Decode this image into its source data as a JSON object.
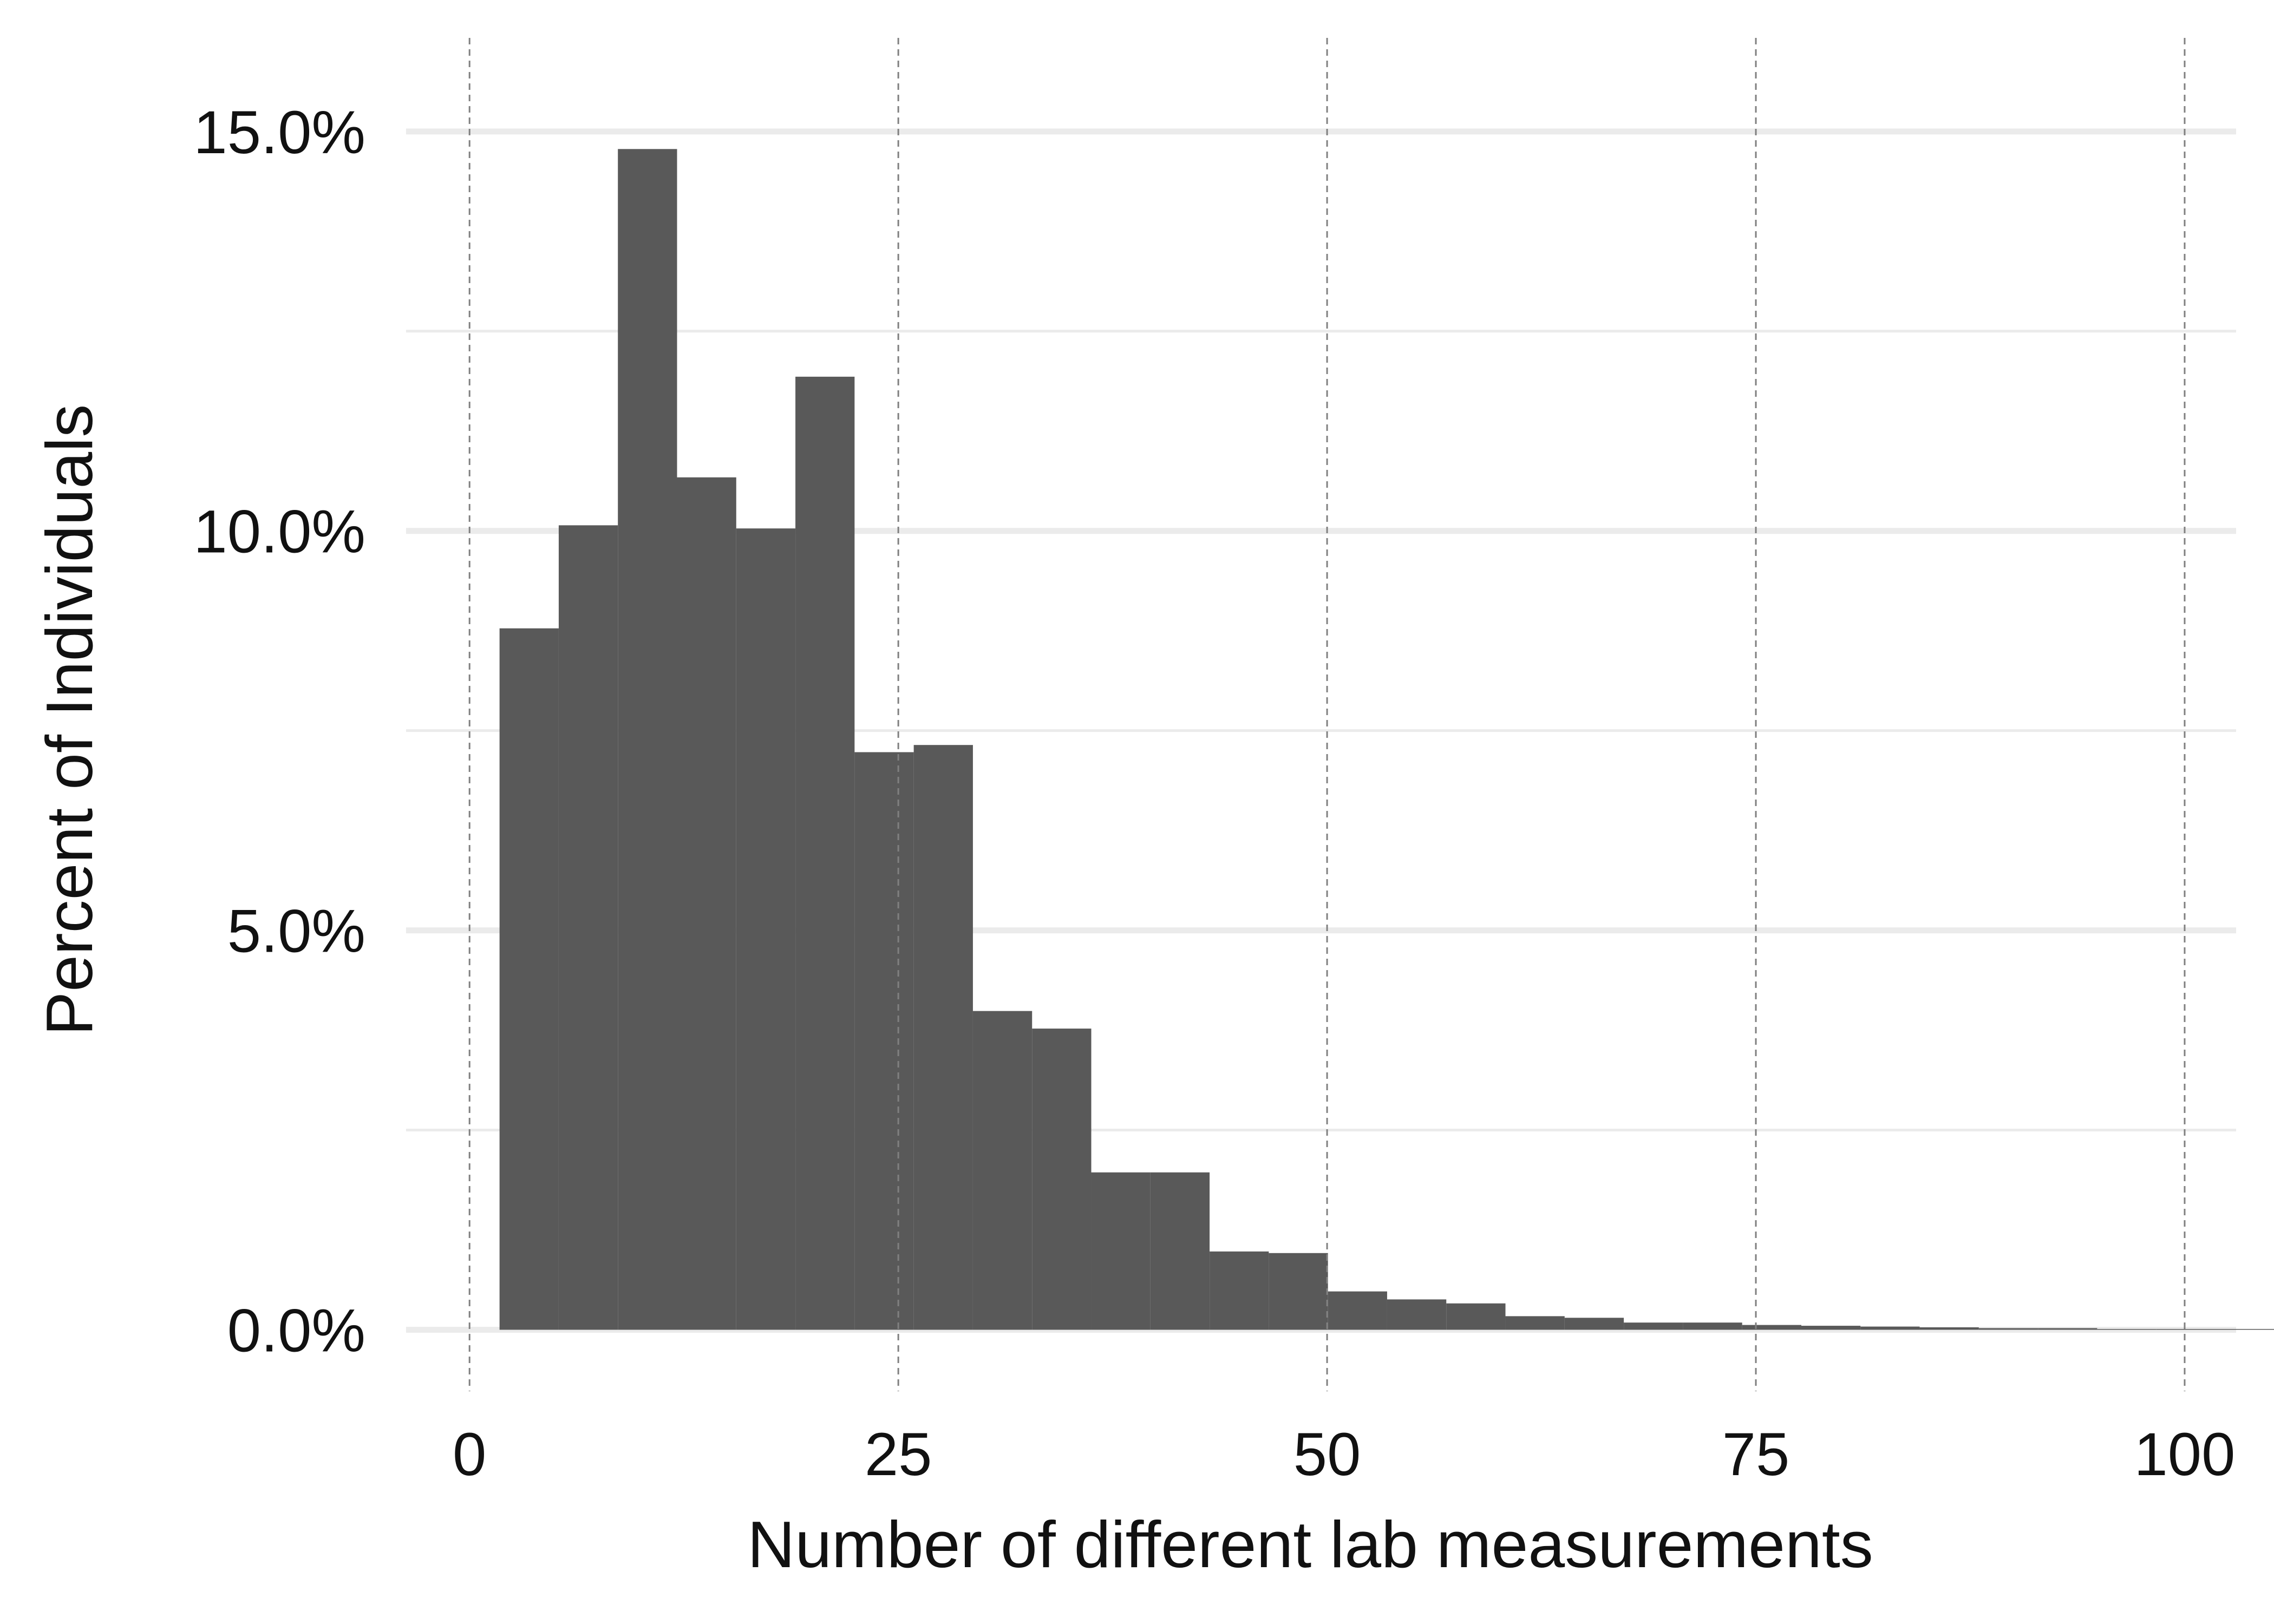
{
  "chart_data": {
    "type": "bar",
    "xlabel": "Number of different lab measurements",
    "ylabel": "Percent of Individuals",
    "xlim": [
      -3.7,
      103
    ],
    "ylim": [
      -0.6,
      15.9
    ],
    "x_ticks": [
      0,
      25,
      50,
      75,
      100
    ],
    "x_tick_labels": [
      "0",
      "25",
      "50",
      "75",
      "100"
    ],
    "y_ticks": [
      0,
      5,
      10,
      15
    ],
    "y_tick_labels": [
      "0.0%",
      "5.0%",
      "10.0%",
      "15.0%"
    ],
    "y_minor_ticks": [
      2.5,
      7.5,
      12.5
    ],
    "bin_width": 3.45,
    "bin_start": 1.75,
    "values": [
      8.78,
      10.07,
      14.78,
      10.67,
      10.03,
      11.93,
      7.23,
      7.32,
      3.99,
      3.77,
      1.97,
      1.97,
      0.98,
      0.96,
      0.48,
      0.38,
      0.33,
      0.17,
      0.15,
      0.09,
      0.09,
      0.06,
      0.05,
      0.04,
      0.03,
      0.02,
      0.02,
      0.01,
      0.01,
      0.01
    ],
    "bar_color": "#595959",
    "grid": true,
    "grid_color": "#ebebeb",
    "vline_color": "#808080",
    "vlines": [
      0,
      25,
      50,
      75,
      100
    ],
    "background": "#ffffff"
  }
}
